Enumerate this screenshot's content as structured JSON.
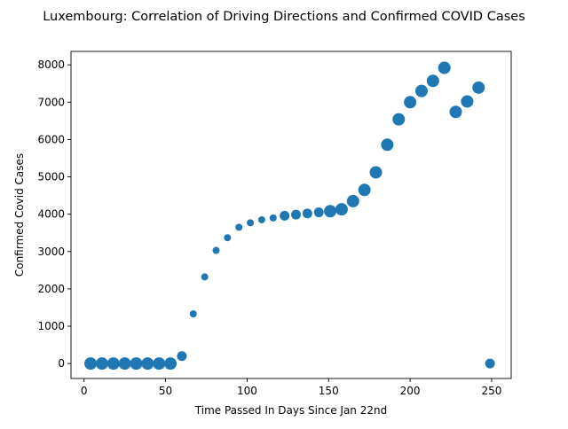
{
  "chart_data": {
    "type": "scatter",
    "title": "Luxembourg: Correlation of Driving Directions and Confirmed COVID Cases",
    "xlabel": "Time Passed In Days Since Jan 22nd",
    "ylabel": "Confirmed Covid Cases",
    "xlim": [
      -8,
      262
    ],
    "ylim": [
      -400,
      8360
    ],
    "xticks": [
      0,
      50,
      100,
      150,
      200,
      250
    ],
    "yticks": [
      0,
      1000,
      2000,
      3000,
      4000,
      5000,
      6000,
      7000,
      8000
    ],
    "grid": false,
    "legend": "none",
    "marker_color": "#1f77b4",
    "points": [
      {
        "x": 4,
        "y": 0,
        "size": "large"
      },
      {
        "x": 11,
        "y": 0,
        "size": "large"
      },
      {
        "x": 18,
        "y": 0,
        "size": "large"
      },
      {
        "x": 25,
        "y": 0,
        "size": "large"
      },
      {
        "x": 32,
        "y": 0,
        "size": "large"
      },
      {
        "x": 39,
        "y": 0,
        "size": "large"
      },
      {
        "x": 46,
        "y": 0,
        "size": "large"
      },
      {
        "x": 53,
        "y": 0,
        "size": "large"
      },
      {
        "x": 60,
        "y": 200,
        "size": "medium"
      },
      {
        "x": 67,
        "y": 1330,
        "size": "small"
      },
      {
        "x": 74,
        "y": 2320,
        "size": "small"
      },
      {
        "x": 81,
        "y": 3030,
        "size": "small"
      },
      {
        "x": 88,
        "y": 3370,
        "size": "small"
      },
      {
        "x": 95,
        "y": 3650,
        "size": "small"
      },
      {
        "x": 102,
        "y": 3770,
        "size": "small"
      },
      {
        "x": 109,
        "y": 3850,
        "size": "small"
      },
      {
        "x": 116,
        "y": 3900,
        "size": "small"
      },
      {
        "x": 123,
        "y": 3960,
        "size": "medium"
      },
      {
        "x": 130,
        "y": 3990,
        "size": "medium"
      },
      {
        "x": 137,
        "y": 4020,
        "size": "medium"
      },
      {
        "x": 144,
        "y": 4050,
        "size": "medium"
      },
      {
        "x": 151,
        "y": 4080,
        "size": "large"
      },
      {
        "x": 158,
        "y": 4130,
        "size": "large"
      },
      {
        "x": 165,
        "y": 4350,
        "size": "large"
      },
      {
        "x": 172,
        "y": 4650,
        "size": "large"
      },
      {
        "x": 179,
        "y": 5120,
        "size": "large"
      },
      {
        "x": 186,
        "y": 5860,
        "size": "large"
      },
      {
        "x": 193,
        "y": 6540,
        "size": "large"
      },
      {
        "x": 200,
        "y": 7000,
        "size": "large"
      },
      {
        "x": 207,
        "y": 7300,
        "size": "large"
      },
      {
        "x": 214,
        "y": 7570,
        "size": "large"
      },
      {
        "x": 221,
        "y": 7920,
        "size": "large"
      },
      {
        "x": 228,
        "y": 6740,
        "size": "large"
      },
      {
        "x": 235,
        "y": 7020,
        "size": "large"
      },
      {
        "x": 242,
        "y": 7390,
        "size": "large"
      },
      {
        "x": 249,
        "y": 0,
        "size": "medium"
      }
    ]
  }
}
